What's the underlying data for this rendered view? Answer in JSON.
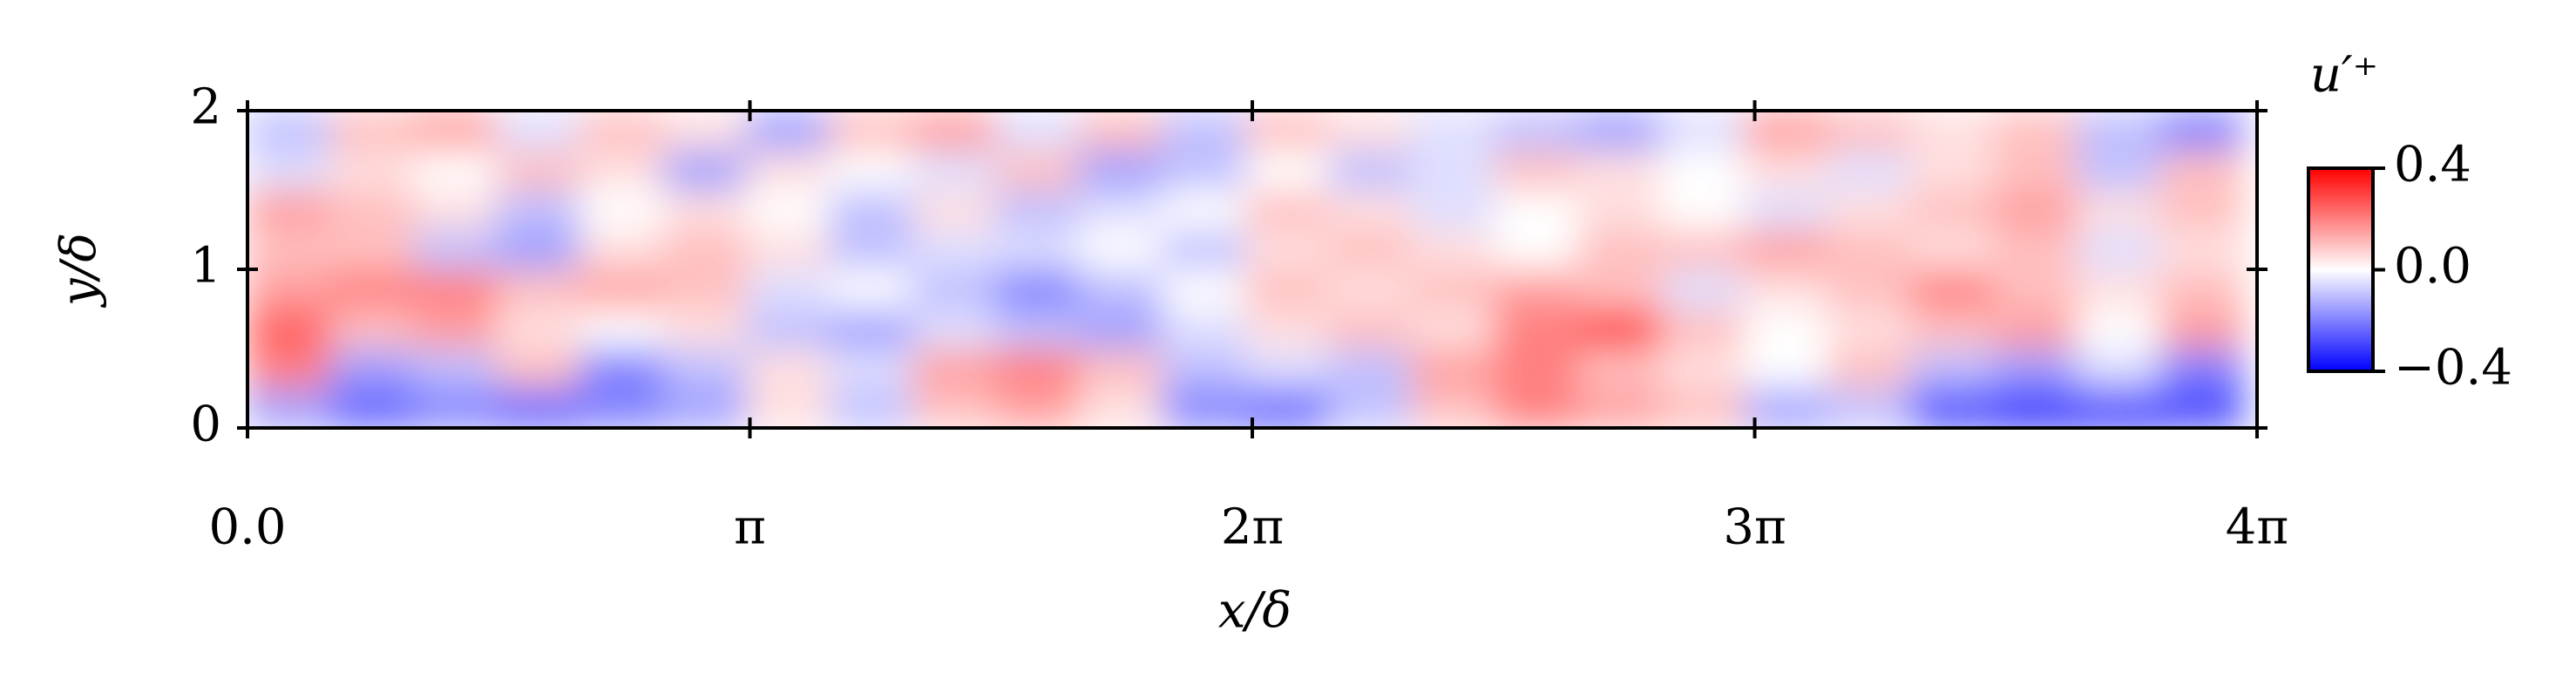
{
  "chart_data": {
    "type": "heatmap",
    "xlabel": "x/δ",
    "ylabel": "y/δ",
    "colorbar_label": "u′⁺",
    "colormap": "bwr",
    "xlim": [
      0,
      12.566
    ],
    "ylim": [
      0,
      2
    ],
    "xticks": [
      {
        "value": 0,
        "label": "0.0"
      },
      {
        "value": 3.1416,
        "label": "π"
      },
      {
        "value": 6.2832,
        "label": "2π"
      },
      {
        "value": 9.4248,
        "label": "3π"
      },
      {
        "value": 12.566,
        "label": "4π"
      }
    ],
    "yticks": [
      0,
      1,
      2
    ],
    "clim": [
      -0.4,
      0.4
    ],
    "cticks": [
      0.4,
      {
        "value": 0,
        "label": "0.0"
      },
      {
        "value": -0.4,
        "label": "−0.4"
      }
    ],
    "x": [
      0.26,
      0.78,
      1.3,
      1.82,
      2.34,
      2.86,
      3.38,
      3.9,
      4.42,
      4.94,
      5.46,
      5.98,
      6.5,
      7.02,
      7.54,
      8.06,
      8.58,
      9.1,
      9.62,
      10.14,
      10.66,
      11.18,
      11.7,
      12.22
    ],
    "y": [
      0.125,
      0.375,
      0.625,
      0.875,
      1.125,
      1.375,
      1.625,
      1.875
    ],
    "z": [
      [
        -0.15,
        -0.25,
        -0.2,
        -0.25,
        -0.2,
        -0.15,
        0.05,
        -0.1,
        0.1,
        0.15,
        0.05,
        -0.2,
        -0.25,
        -0.1,
        0.1,
        0.2,
        0.15,
        0.1,
        -0.15,
        -0.1,
        -0.3,
        -0.35,
        -0.35,
        -0.3
      ],
      [
        0.2,
        -0.15,
        -0.1,
        0.1,
        -0.2,
        -0.1,
        0.05,
        -0.05,
        0.15,
        0.2,
        0.1,
        -0.1,
        -0.05,
        -0.1,
        0.15,
        0.2,
        0.1,
        0.05,
        0.0,
        0.1,
        -0.1,
        -0.15,
        -0.05,
        -0.2
      ],
      [
        0.25,
        0.1,
        0.15,
        0.05,
        0.0,
        0.05,
        -0.1,
        -0.15,
        -0.05,
        -0.1,
        -0.15,
        -0.05,
        0.05,
        0.1,
        0.05,
        0.2,
        0.3,
        0.1,
        0.0,
        0.05,
        0.1,
        0.15,
        0.0,
        0.15
      ],
      [
        0.15,
        0.2,
        0.2,
        0.1,
        0.15,
        0.1,
        -0.05,
        0.0,
        -0.1,
        -0.2,
        -0.1,
        0.0,
        0.1,
        0.05,
        0.1,
        0.15,
        0.1,
        -0.05,
        0.05,
        0.1,
        0.2,
        0.1,
        0.05,
        0.1
      ],
      [
        0.1,
        0.1,
        -0.1,
        -0.15,
        0.05,
        0.1,
        0.05,
        -0.1,
        -0.05,
        -0.05,
        0.0,
        -0.1,
        0.05,
        0.1,
        0.05,
        0.0,
        0.1,
        0.1,
        0.15,
        0.1,
        0.05,
        0.1,
        -0.05,
        0.05
      ],
      [
        0.15,
        0.1,
        0.05,
        -0.1,
        0.0,
        0.05,
        0.0,
        -0.1,
        0.05,
        -0.1,
        -0.05,
        0.0,
        0.1,
        0.05,
        -0.05,
        0.0,
        0.05,
        0.0,
        -0.05,
        0.05,
        0.1,
        0.15,
        0.05,
        0.1
      ],
      [
        -0.05,
        0.05,
        0.0,
        0.1,
        0.05,
        -0.15,
        0.05,
        0.0,
        -0.05,
        0.1,
        -0.15,
        -0.1,
        0.0,
        -0.1,
        -0.05,
        0.1,
        0.05,
        0.0,
        0.05,
        -0.05,
        0.05,
        0.1,
        -0.1,
        0.1
      ],
      [
        -0.1,
        0.1,
        0.15,
        -0.05,
        0.1,
        0.05,
        -0.15,
        0.1,
        0.15,
        -0.05,
        0.1,
        -0.1,
        0.1,
        0.05,
        -0.05,
        -0.1,
        -0.15,
        -0.05,
        0.15,
        0.1,
        0.05,
        0.1,
        -0.1,
        -0.2
      ]
    ]
  }
}
